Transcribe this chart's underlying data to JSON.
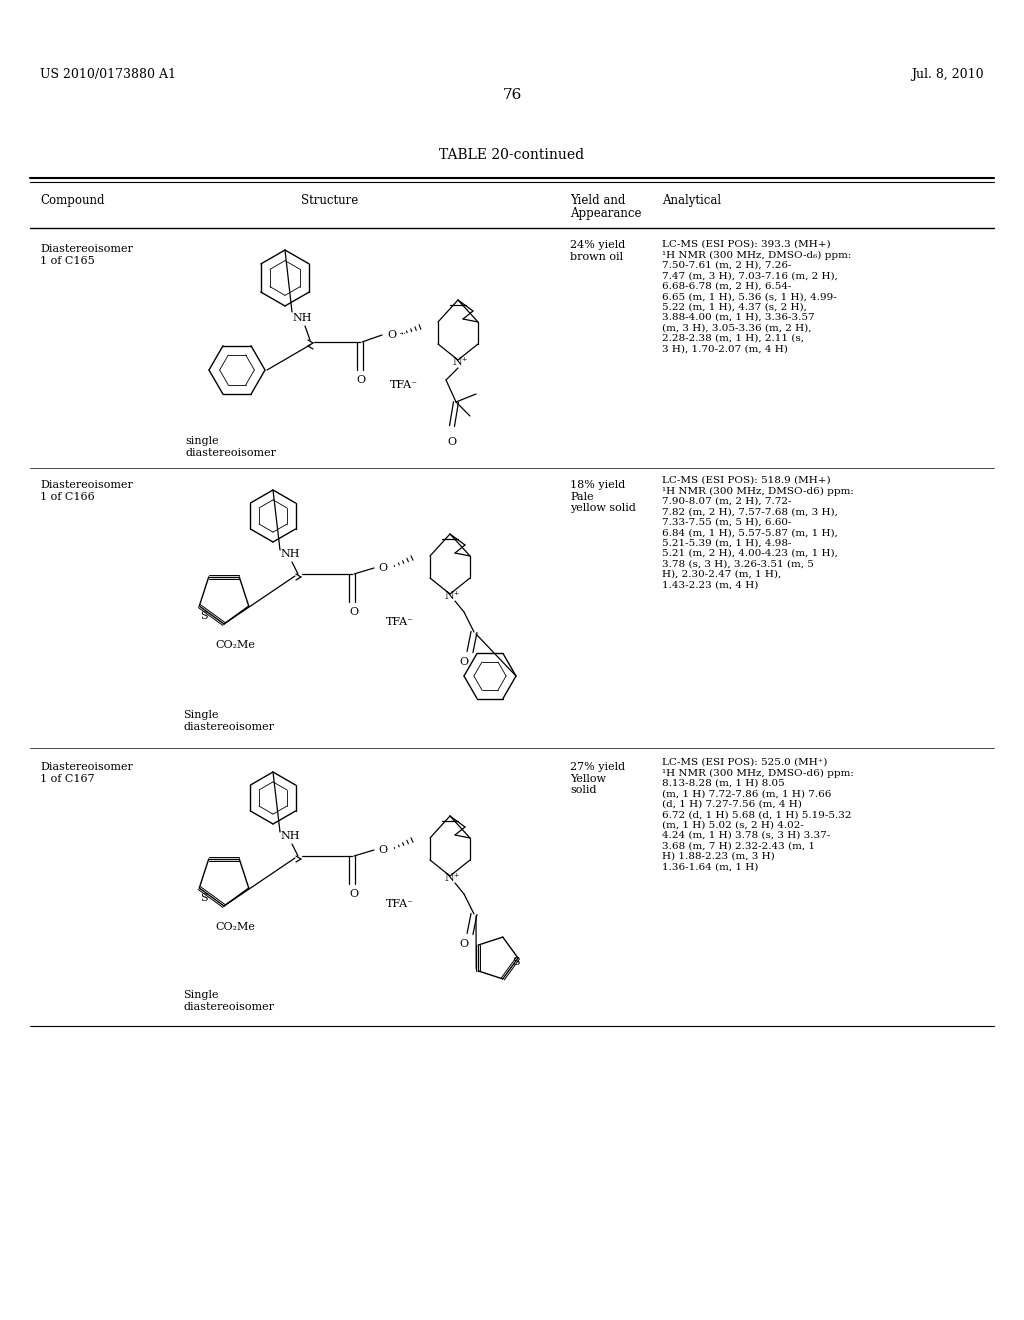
{
  "background_color": "#ffffff",
  "page_number": "76",
  "header_left": "US 2010/0173880 A1",
  "header_right": "Jul. 8, 2010",
  "table_title": "TABLE 20-continued",
  "rows": [
    {
      "compound": "Diastereoisomer\n1 of C165",
      "yield_appearance": "24% yield\nbrown oil",
      "analytical": "LC-MS (ESI POS): 393.3 (MH+)\n¹H NMR (300 MHz, DMSO-d₆) ppm:\n7.50-7.61 (m, 2 H), 7.26-\n7.47 (m, 3 H), 7.03-7.16 (m, 2 H),\n6.68-6.78 (m, 2 H), 6.54-\n6.65 (m, 1 H), 5.36 (s, 1 H), 4.99-\n5.22 (m, 1 H), 4.37 (s, 2 H),\n3.88-4.00 (m, 1 H), 3.36-3.57\n(m, 3 H), 3.05-3.36 (m, 2 H),\n2.28-2.38 (m, 1 H), 2.11 (s,\n3 H), 1.70-2.07 (m, 4 H)",
      "sub_label": "single\ndiastereoisomer"
    },
    {
      "compound": "Diastereoisomer\n1 of C166",
      "yield_appearance": "18% yield\nPale\nyellow solid",
      "analytical": "LC-MS (ESI POS): 518.9 (MH+)\n¹H NMR (300 MHz, DMSO-d6) ppm:\n7.90-8.07 (m, 2 H), 7.72-\n7.82 (m, 2 H), 7.57-7.68 (m, 3 H),\n7.33-7.55 (m, 5 H), 6.60-\n6.84 (m, 1 H), 5.57-5.87 (m, 1 H),\n5.21-5.39 (m, 1 H), 4.98-\n5.21 (m, 2 H), 4.00-4.23 (m, 1 H),\n3.78 (s, 3 H), 3.26-3.51 (m, 5\nH), 2.30-2.47 (m, 1 H),\n1.43-2.23 (m, 4 H)",
      "sub_label": "Single\ndiastereoisomer"
    },
    {
      "compound": "Diastereoisomer\n1 of C167",
      "yield_appearance": "27% yield\nYellow\nsolid",
      "analytical": "LC-MS (ESI POS): 525.0 (MH⁺)\n¹H NMR (300 MHz, DMSO-d6) ppm:\n8.13-8.28 (m, 1 H) 8.05\n(m, 1 H) 7.72-7.86 (m, 1 H) 7.66\n(d, 1 H) 7.27-7.56 (m, 4 H)\n6.72 (d, 1 H) 5.68 (d, 1 H) 5.19-5.32\n(m, 1 H) 5.02 (s, 2 H) 4.02-\n4.24 (m, 1 H) 3.78 (s, 3 H) 3.37-\n3.68 (m, 7 H) 2.32-2.43 (m, 1\nH) 1.88-2.23 (m, 3 H)\n1.36-1.64 (m, 1 H)",
      "sub_label": "Single\ndiastereoisomer"
    }
  ]
}
